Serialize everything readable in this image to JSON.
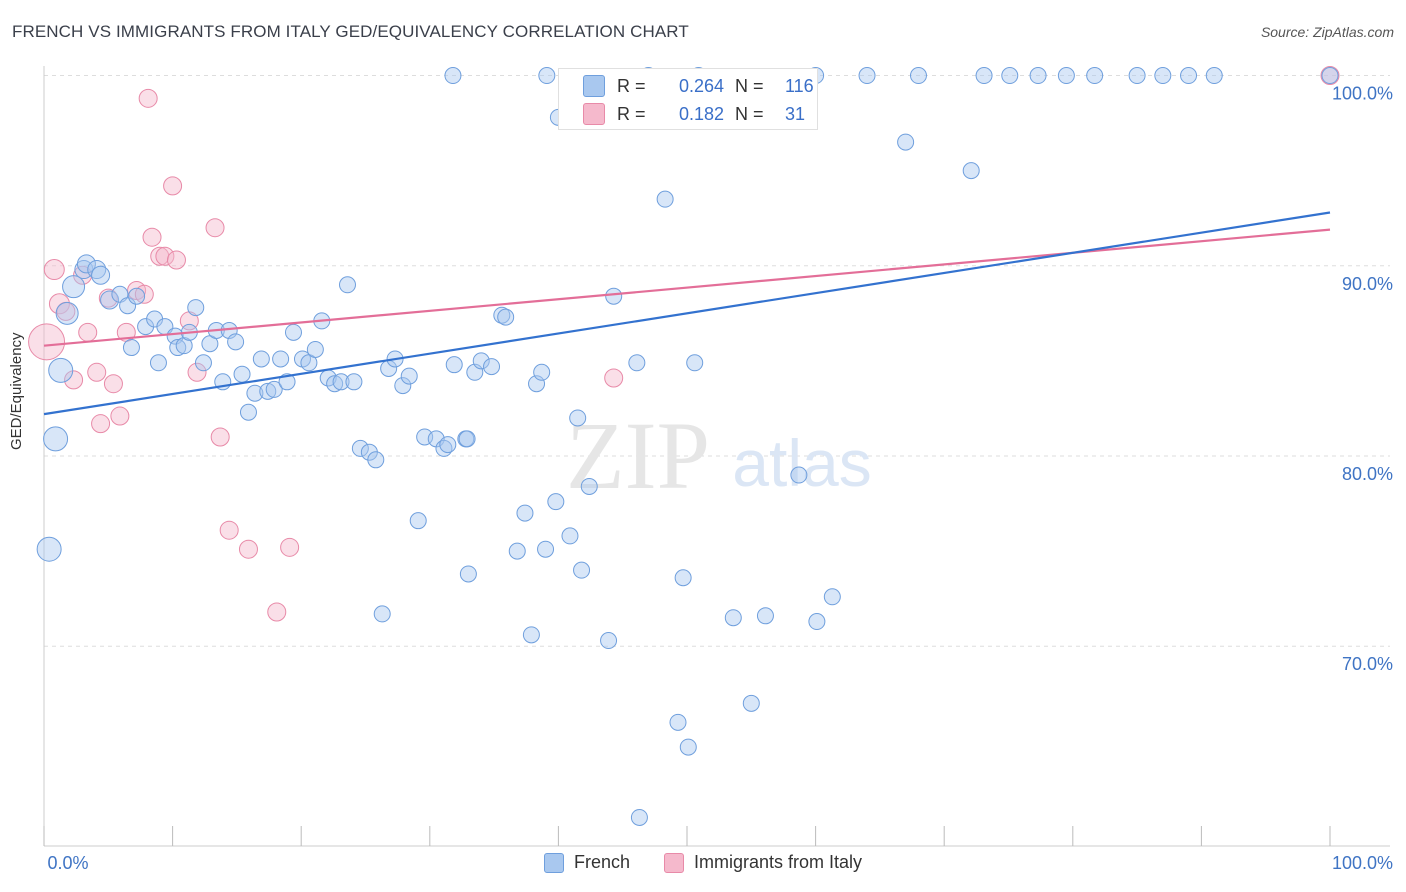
{
  "title": "FRENCH VS IMMIGRANTS FROM ITALY GED/EQUIVALENCY CORRELATION CHART",
  "source": "Source: ZipAtlas.com",
  "watermark": {
    "zip": "ZIP",
    "atlas": "atlas"
  },
  "colors": {
    "french_fill": "#a9c8ef",
    "french_stroke": "#6f9fdd",
    "french_line": "#3372cf",
    "italy_fill": "#f5b9cc",
    "italy_stroke": "#e88aa8",
    "italy_line": "#e36e98",
    "tick_text": "#3f74c4",
    "grid": "#dddddd"
  },
  "stats": [
    {
      "r_label": "R =",
      "r_value": "0.264",
      "n_label": "N =",
      "n_value": "116"
    },
    {
      "r_label": "R =",
      "r_value": "0.182",
      "n_label": "N =",
      "n_value": "31"
    }
  ],
  "legend": [
    {
      "label": "French"
    },
    {
      "label": "Immigrants from Italy"
    }
  ],
  "chart_data": {
    "type": "scatter",
    "title": "FRENCH VS IMMIGRANTS FROM ITALY GED/EQUIVALENCY CORRELATION CHART",
    "xlabel": "",
    "ylabel": "GED/Equivalency",
    "xlim": [
      0,
      100
    ],
    "ylim": [
      59.5,
      100.5
    ],
    "x_tick_labels": [
      "0.0%",
      "100.0%"
    ],
    "y_ticks": [
      70,
      80,
      90,
      100
    ],
    "y_tick_labels": [
      "70.0%",
      "80.0%",
      "90.0%",
      "100.0%"
    ],
    "grid": true,
    "legend_position": "bottom",
    "series": [
      {
        "name": "French",
        "trend": {
          "x": [
            0,
            100
          ],
          "y": [
            82.2,
            92.8
          ]
        },
        "points": [
          [
            0.4,
            75.1,
            12
          ],
          [
            0.9,
            80.9,
            12
          ],
          [
            1.3,
            84.5,
            12
          ],
          [
            1.8,
            87.5,
            11
          ],
          [
            2.3,
            88.9,
            11
          ],
          [
            3.1,
            89.8,
            9
          ],
          [
            3.3,
            90.1,
            9
          ],
          [
            4.1,
            89.8,
            9
          ],
          [
            4.4,
            89.5,
            9
          ],
          [
            5.1,
            88.2,
            9
          ],
          [
            5.9,
            88.5,
            8
          ],
          [
            6.5,
            87.9,
            8
          ],
          [
            7.2,
            88.4,
            8
          ],
          [
            6.8,
            85.7,
            8
          ],
          [
            7.9,
            86.8,
            8
          ],
          [
            8.6,
            87.2,
            8
          ],
          [
            8.9,
            84.9,
            8
          ],
          [
            9.4,
            86.8,
            8
          ],
          [
            10.2,
            86.3,
            8
          ],
          [
            10.4,
            85.7,
            8
          ],
          [
            10.9,
            85.8,
            8
          ],
          [
            11.3,
            86.5,
            8
          ],
          [
            11.8,
            87.8,
            8
          ],
          [
            12.4,
            84.9,
            8
          ],
          [
            12.9,
            85.9,
            8
          ],
          [
            13.4,
            86.6,
            8
          ],
          [
            13.9,
            83.9,
            8
          ],
          [
            14.4,
            86.6,
            8
          ],
          [
            14.9,
            86.0,
            8
          ],
          [
            15.4,
            84.3,
            8
          ],
          [
            15.9,
            82.3,
            8
          ],
          [
            16.4,
            83.3,
            8
          ],
          [
            16.9,
            85.1,
            8
          ],
          [
            17.4,
            83.4,
            8
          ],
          [
            17.9,
            83.5,
            8
          ],
          [
            18.4,
            85.1,
            8
          ],
          [
            18.9,
            83.9,
            8
          ],
          [
            19.4,
            86.5,
            8
          ],
          [
            20.1,
            85.1,
            8
          ],
          [
            20.6,
            84.9,
            8
          ],
          [
            21.1,
            85.6,
            8
          ],
          [
            21.6,
            87.1,
            8
          ],
          [
            22.1,
            84.1,
            8
          ],
          [
            22.6,
            83.8,
            8
          ],
          [
            23.1,
            83.9,
            8
          ],
          [
            23.6,
            89.0,
            8
          ],
          [
            24.1,
            83.9,
            8
          ],
          [
            24.6,
            80.4,
            8
          ],
          [
            25.3,
            80.2,
            8
          ],
          [
            25.8,
            79.8,
            8
          ],
          [
            26.3,
            71.7,
            8
          ],
          [
            26.8,
            84.6,
            8
          ],
          [
            27.3,
            85.1,
            8
          ],
          [
            27.9,
            83.7,
            8
          ],
          [
            28.4,
            84.2,
            8
          ],
          [
            29.1,
            76.6,
            8
          ],
          [
            29.6,
            81.0,
            8
          ],
          [
            30.5,
            80.9,
            8
          ],
          [
            31.1,
            80.4,
            8
          ],
          [
            31.4,
            80.6,
            8
          ],
          [
            31.9,
            84.8,
            8
          ],
          [
            32.8,
            80.9,
            8
          ],
          [
            32.9,
            80.9,
            8
          ],
          [
            33.0,
            73.8,
            8
          ],
          [
            33.5,
            84.4,
            8
          ],
          [
            34.0,
            85.0,
            8
          ],
          [
            34.8,
            84.7,
            8
          ],
          [
            35.6,
            87.4,
            8
          ],
          [
            35.9,
            87.3,
            8
          ],
          [
            36.8,
            75.0,
            8
          ],
          [
            37.4,
            77.0,
            8
          ],
          [
            37.9,
            70.6,
            8
          ],
          [
            38.3,
            83.8,
            8
          ],
          [
            38.7,
            84.4,
            8
          ],
          [
            39.0,
            75.1,
            8
          ],
          [
            39.8,
            77.6,
            8
          ],
          [
            40.9,
            75.8,
            8
          ],
          [
            41.5,
            82.0,
            8
          ],
          [
            41.8,
            74.0,
            8
          ],
          [
            42.4,
            78.4,
            8
          ],
          [
            43.9,
            70.3,
            8
          ],
          [
            44.3,
            88.4,
            8
          ],
          [
            46.1,
            84.9,
            8
          ],
          [
            46.3,
            61.0,
            8
          ],
          [
            48.3,
            93.5,
            8
          ],
          [
            49.3,
            66.0,
            8
          ],
          [
            49.7,
            73.6,
            8
          ],
          [
            50.1,
            64.7,
            8
          ],
          [
            50.6,
            84.9,
            8
          ],
          [
            53.6,
            71.5,
            8
          ],
          [
            55.0,
            67.0,
            8
          ],
          [
            56.1,
            71.6,
            8
          ],
          [
            58.7,
            79.0,
            8
          ],
          [
            60.1,
            71.3,
            8
          ],
          [
            61.3,
            72.6,
            8
          ],
          [
            67.0,
            96.5,
            8
          ],
          [
            72.1,
            95.0,
            8
          ],
          [
            73.1,
            100.0,
            8
          ],
          [
            75.1,
            100.0,
            8
          ],
          [
            77.3,
            100.0,
            8
          ],
          [
            79.5,
            100.0,
            8
          ],
          [
            81.7,
            100.0,
            8
          ],
          [
            31.8,
            100.0,
            8
          ],
          [
            39.1,
            100.0,
            8
          ],
          [
            40.0,
            97.8,
            8
          ],
          [
            47.0,
            100.0,
            8
          ],
          [
            50.9,
            100.0,
            8
          ],
          [
            52.0,
            97.8,
            8
          ],
          [
            60.0,
            100.0,
            8
          ],
          [
            64.0,
            100.0,
            8
          ],
          [
            68.0,
            100.0,
            8
          ],
          [
            85.0,
            100.0,
            8
          ],
          [
            87.0,
            100.0,
            8
          ],
          [
            89.0,
            100.0,
            8
          ],
          [
            91.0,
            100.0,
            8
          ],
          [
            100.0,
            100.0,
            8
          ]
        ]
      },
      {
        "name": "Immigrants from Italy",
        "trend": {
          "x": [
            0,
            100
          ],
          "y": [
            85.8,
            91.9
          ]
        },
        "points": [
          [
            0.2,
            86.0,
            18
          ],
          [
            0.8,
            89.8,
            10
          ],
          [
            1.2,
            88.0,
            10
          ],
          [
            1.7,
            87.6,
            9
          ],
          [
            2.3,
            84.0,
            9
          ],
          [
            3.0,
            89.5,
            9
          ],
          [
            3.4,
            86.5,
            9
          ],
          [
            4.1,
            84.4,
            9
          ],
          [
            4.4,
            81.7,
            9
          ],
          [
            5.0,
            88.3,
            9
          ],
          [
            5.4,
            83.8,
            9
          ],
          [
            5.9,
            82.1,
            9
          ],
          [
            6.4,
            86.5,
            9
          ],
          [
            7.2,
            88.7,
            9
          ],
          [
            7.8,
            88.5,
            9
          ],
          [
            8.1,
            98.8,
            9
          ],
          [
            8.4,
            91.5,
            9
          ],
          [
            9.0,
            90.5,
            9
          ],
          [
            9.4,
            90.5,
            9
          ],
          [
            10.0,
            94.2,
            9
          ],
          [
            10.3,
            90.3,
            9
          ],
          [
            11.3,
            87.1,
            9
          ],
          [
            11.9,
            84.4,
            9
          ],
          [
            13.3,
            92.0,
            9
          ],
          [
            13.7,
            81.0,
            9
          ],
          [
            14.4,
            76.1,
            9
          ],
          [
            15.9,
            75.1,
            9
          ],
          [
            18.1,
            71.8,
            9
          ],
          [
            19.1,
            75.2,
            9
          ],
          [
            44.3,
            84.1,
            9
          ],
          [
            100.0,
            100.0,
            9
          ]
        ]
      }
    ]
  }
}
